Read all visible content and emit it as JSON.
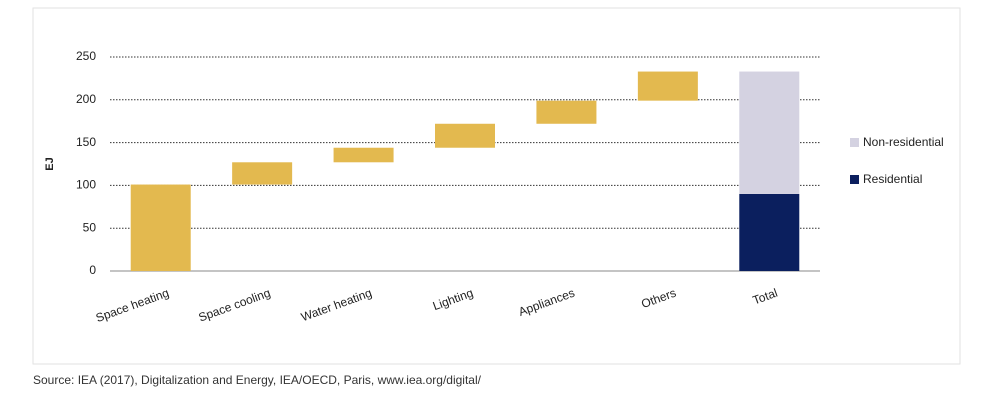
{
  "chart_data": {
    "type": "waterfall",
    "y_label": "EJ",
    "categories": [
      "Space heating",
      "Space cooling",
      "Water heating",
      "Lighting",
      "Appliances",
      "Others",
      "Total"
    ],
    "values": [
      101,
      26,
      17,
      28,
      27,
      34,
      null
    ],
    "color": "#e3b94f",
    "series": [
      {
        "name": "Residential",
        "color": "#0b1f5e",
        "values": [
          null,
          null,
          null,
          null,
          null,
          null,
          90
        ]
      },
      {
        "name": "Non-residential",
        "color": "#d4d2e1",
        "values": [
          null,
          null,
          null,
          null,
          null,
          null,
          143
        ]
      }
    ],
    "ylim": [
      0,
      250
    ],
    "yticks": [
      0,
      50,
      100,
      150,
      200,
      250
    ],
    "grid": true,
    "source": "Source: IEA (2017), Digitalization and Energy, IEA/OECD, Paris, www.iea.org/digital/"
  }
}
